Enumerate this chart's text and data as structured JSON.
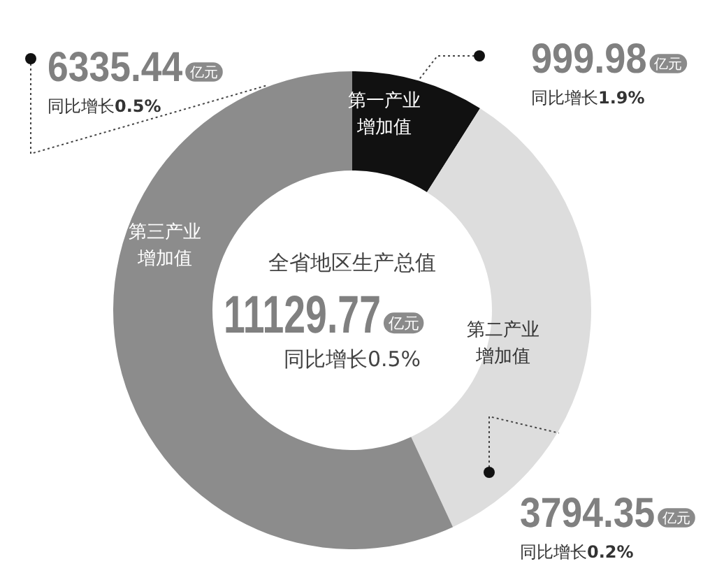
{
  "chart_data": {
    "type": "donut",
    "title": "全省地区生产总值",
    "categories": [
      "第一产业增加值",
      "第二产业增加值",
      "第三产业增加值"
    ],
    "values": [
      999.98,
      3794.35,
      6335.44
    ],
    "colors": [
      "#111111",
      "#dddddd",
      "#8c8c8c"
    ],
    "value_labels": [
      "999.98亿元",
      "3794.35亿元",
      "6335.44亿元"
    ],
    "annotations": [
      "11129.77亿元",
      "同比增长0.5%",
      {
        "text": "同比增长1.9%",
        "x": "第一产业增加值"
      },
      {
        "text": "同比增长0.2%",
        "x": "第二产业增加值"
      },
      {
        "text": "同比增长0.5%",
        "x": "第三产业增加值"
      }
    ]
  }
}
